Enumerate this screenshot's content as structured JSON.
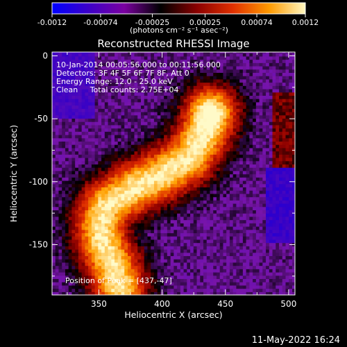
{
  "colorbar": {
    "ticks": [
      "-0.0012",
      "-0.00074",
      "-0.00025",
      "0.00025",
      "0.00074",
      "0.0012"
    ],
    "unit_label": "(photons cm⁻² s⁻¹ asec⁻²)",
    "colors": [
      "#0000ff",
      "#3c00c8",
      "#7a00a0",
      "#000000",
      "#8a0000",
      "#e03000",
      "#ff9a00",
      "#fff7c0"
    ]
  },
  "chart_data": {
    "type": "heatmap",
    "title": "Reconstructed RHESSI Image",
    "xlabel": "Heliocentric X (arcsec)",
    "ylabel": "Heliocentric Y (arcsec)",
    "xlim": [
      313,
      505
    ],
    "ylim": [
      -190,
      3
    ],
    "xticks": [
      350,
      400,
      450,
      500
    ],
    "yticks": [
      0,
      -50,
      -100,
      -150
    ],
    "value_range": [
      -0.0012,
      0.0012
    ],
    "peak": {
      "x": 437,
      "y": -47
    },
    "annotations": {
      "time_range": "10-Jan-2014 00:05:56.000 to 00:11:56.000",
      "detectors": "Detectors: 3F 4F 5F 6F 7F 8F, Att 0",
      "energy": "Energy Range: 12.0 - 25.0 keV",
      "method_counts": "Clean     Total counts: 2.75E+04",
      "peak_label": "Position of Peak = [437,-47]"
    }
  },
  "footer": {
    "date_stamp": "11-May-2022 16:24"
  }
}
